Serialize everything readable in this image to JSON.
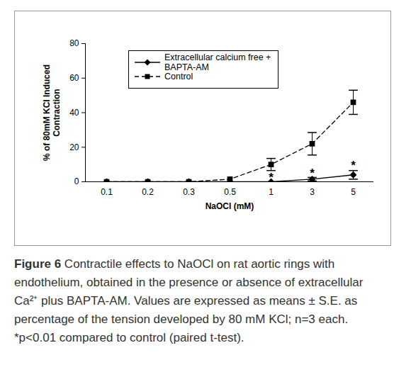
{
  "chart_data": {
    "type": "line",
    "x_label": "NaOCl (mM)",
    "y_label": [
      "% of 80mM KCl Induced",
      "Contraction"
    ],
    "categories": [
      "0.1",
      "0.2",
      "0.3",
      "0.5",
      "1",
      "3",
      "5"
    ],
    "series": [
      {
        "name": "Extracellular calcium free + BAPTA-AM",
        "color": "#000000",
        "marker": "diamond",
        "line_style": "solid",
        "values": [
          0,
          0,
          0,
          0,
          0,
          1.5,
          4
        ],
        "errors": [
          0,
          0,
          0,
          0,
          0,
          1,
          2.5
        ]
      },
      {
        "name": "Control",
        "color": "#000000",
        "marker": "square",
        "line_style": "dashed",
        "values": [
          0,
          0,
          0,
          1.5,
          10,
          22,
          46
        ],
        "errors": [
          0,
          0,
          0,
          0,
          3.5,
          6.5,
          7
        ]
      }
    ],
    "annotations": [
      {
        "text": "*",
        "x": "1",
        "y": 4
      },
      {
        "text": "*",
        "x": "3",
        "y": 6.5
      },
      {
        "text": "*",
        "x": "5",
        "y": 11
      }
    ],
    "ylim": [
      0,
      80
    ],
    "yticks": [
      0,
      20,
      40,
      60,
      80
    ],
    "grid": false,
    "legend": "top-left",
    "caption_label": "Figure 6",
    "caption": "Contractile effects to NaOCl on rat aortic rings with endothelium, obtained in the presence or absence of extracellular Ca²⁺ plus BAPTA-AM. Values are expressed as means ± S.E. as percentage of the tension developed by 80 mM KCl; n=3 each. *p<0.01 compared to control (paired t-test)."
  }
}
